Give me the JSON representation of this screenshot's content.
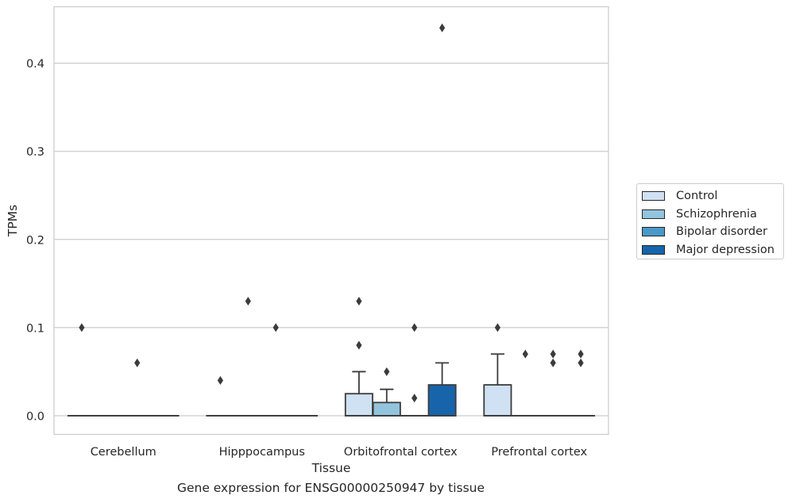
{
  "figure": {
    "caption": "Gene expression for ENSG00000250947 by tissue"
  },
  "chart_data": {
    "type": "box",
    "xlabel": "Tissue",
    "ylabel": "TPMs",
    "categories": [
      "Cerebellum",
      "Hipppocampus",
      "Orbitofrontal cortex",
      "Prefrontal cortex"
    ],
    "ylim": [
      -0.022,
      0.465
    ],
    "yticks": [
      0.0,
      0.1,
      0.2,
      0.3,
      0.4
    ],
    "ytick_labels": [
      "0.0",
      "0.1",
      "0.2",
      "0.3",
      "0.4"
    ],
    "grid": "horizontal",
    "legend_position": "right",
    "series": [
      {
        "name": "Control",
        "color": "#cfe1f2",
        "boxes": [
          {
            "q1": 0,
            "median": 0,
            "q3": 0,
            "whisker_low": 0,
            "whisker_high": 0,
            "outliers": [
              0.1
            ]
          },
          {
            "q1": 0,
            "median": 0,
            "q3": 0,
            "whisker_low": 0,
            "whisker_high": 0,
            "outliers": [
              0.04
            ]
          },
          {
            "q1": 0,
            "median": 0,
            "q3": 0.025,
            "whisker_low": 0,
            "whisker_high": 0.05,
            "outliers": [
              0.08,
              0.13
            ]
          },
          {
            "q1": 0,
            "median": 0,
            "q3": 0.035,
            "whisker_low": 0,
            "whisker_high": 0.07,
            "outliers": [
              0.1
            ]
          }
        ]
      },
      {
        "name": "Schizophrenia",
        "color": "#93c4de",
        "boxes": [
          {
            "q1": 0,
            "median": 0,
            "q3": 0,
            "whisker_low": 0,
            "whisker_high": 0,
            "outliers": []
          },
          {
            "q1": 0,
            "median": 0,
            "q3": 0,
            "whisker_low": 0,
            "whisker_high": 0,
            "outliers": [
              0.13
            ]
          },
          {
            "q1": 0,
            "median": 0,
            "q3": 0.015,
            "whisker_low": 0,
            "whisker_high": 0.03,
            "outliers": [
              0.05
            ]
          },
          {
            "q1": 0,
            "median": 0,
            "q3": 0,
            "whisker_low": 0,
            "whisker_high": 0,
            "outliers": [
              0.07
            ]
          }
        ]
      },
      {
        "name": "Bipolar disorder",
        "color": "#4a98c9",
        "boxes": [
          {
            "q1": 0,
            "median": 0,
            "q3": 0,
            "whisker_low": 0,
            "whisker_high": 0,
            "outliers": [
              0.06
            ]
          },
          {
            "q1": 0,
            "median": 0,
            "q3": 0,
            "whisker_low": 0,
            "whisker_high": 0,
            "outliers": [
              0.1
            ]
          },
          {
            "q1": 0,
            "median": 0,
            "q3": 0,
            "whisker_low": 0,
            "whisker_high": 0,
            "outliers": [
              0.02,
              0.1
            ]
          },
          {
            "q1": 0,
            "median": 0,
            "q3": 0,
            "whisker_low": 0,
            "whisker_high": 0,
            "outliers": [
              0.06,
              0.07
            ]
          }
        ]
      },
      {
        "name": "Major depression",
        "color": "#1764ab",
        "boxes": [
          {
            "q1": 0,
            "median": 0,
            "q3": 0,
            "whisker_low": 0,
            "whisker_high": 0,
            "outliers": []
          },
          {
            "q1": 0,
            "median": 0,
            "q3": 0,
            "whisker_low": 0,
            "whisker_high": 0,
            "outliers": []
          },
          {
            "q1": 0,
            "median": 0,
            "q3": 0.035,
            "whisker_low": 0,
            "whisker_high": 0.06,
            "outliers": [
              0.44
            ]
          },
          {
            "q1": 0,
            "median": 0,
            "q3": 0,
            "whisker_low": 0,
            "whisker_high": 0,
            "outliers": [
              0.06,
              0.07
            ]
          }
        ]
      }
    ]
  }
}
